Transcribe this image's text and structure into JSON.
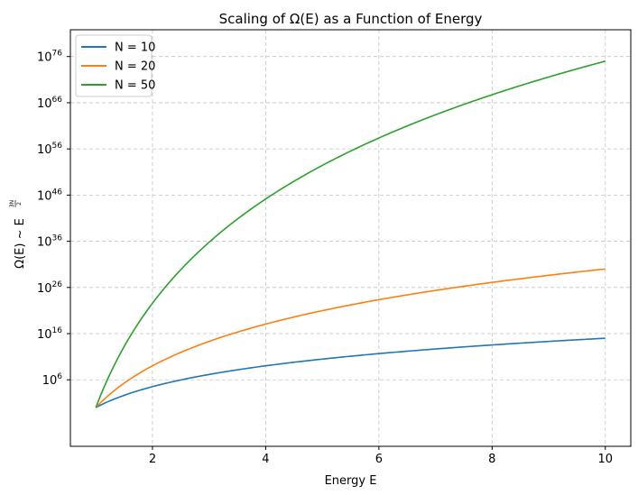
{
  "chart_data": {
    "type": "line",
    "title": "Scaling of Ω(E) as a Function of Energy",
    "xlabel": "Energy E",
    "ylabel": "Ω(E) ~ E^(3N/2)",
    "ylabel_parts": {
      "main": "Ω(E) ~ E",
      "exp_num": "3N",
      "exp_den": "2"
    },
    "xlim": [
      0.55,
      10.45
    ],
    "ylim_log10": [
      -8.4,
      81.8
    ],
    "yscale": "log",
    "xticks": [
      2,
      4,
      6,
      8,
      10
    ],
    "xtick_labels": [
      "2",
      "4",
      "6",
      "8",
      "10"
    ],
    "yticks_exponents": [
      6,
      16,
      26,
      36,
      46,
      56,
      66,
      76
    ],
    "ytick_base": "10",
    "grid": true,
    "legend_position": "upper left",
    "x_range": [
      1,
      10
    ],
    "series": [
      {
        "name": "N = 10",
        "exponent": 15,
        "color": "#1f77b4"
      },
      {
        "name": "N = 20",
        "exponent": 30,
        "color": "#ff7f0e"
      },
      {
        "name": "N = 50",
        "exponent": 75,
        "color": "#2ca02c"
      }
    ]
  }
}
